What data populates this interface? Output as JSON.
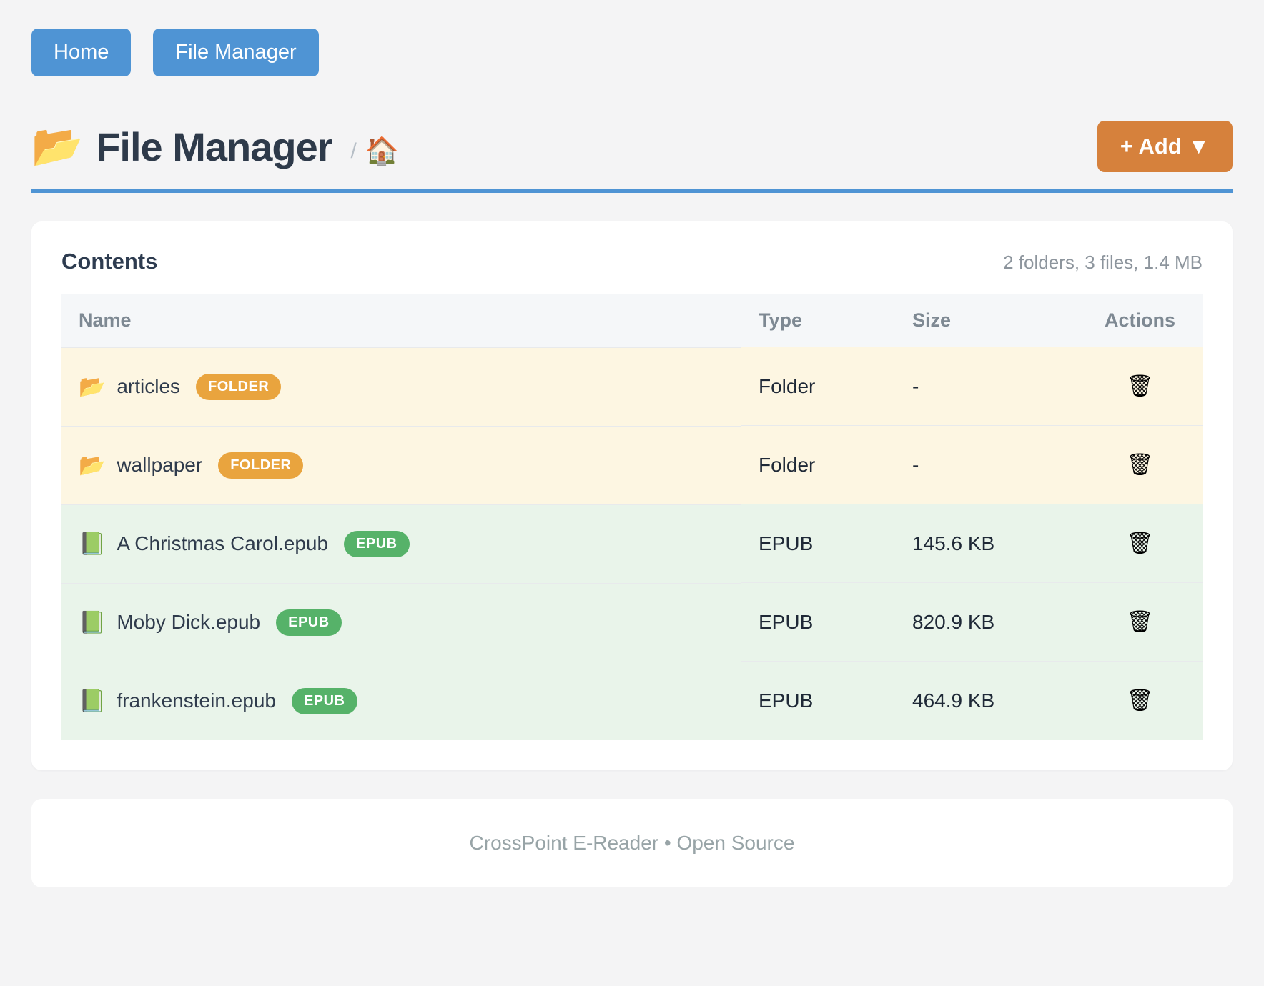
{
  "nav": {
    "items": [
      {
        "label": "Home"
      },
      {
        "label": "File Manager"
      }
    ]
  },
  "header": {
    "icon": "📂",
    "title": "File Manager",
    "breadcrumb_separator": "/",
    "breadcrumb_home_icon": "🏠",
    "add_button_label": "+ Add ▼"
  },
  "contents": {
    "title": "Contents",
    "summary": "2 folders, 3 files, 1.4 MB",
    "columns": [
      "Name",
      "Type",
      "Size",
      "Actions"
    ],
    "rows": [
      {
        "icon": "📂",
        "name": "articles",
        "badge": "FOLDER",
        "badge_type": "folder",
        "type": "Folder",
        "size": "-",
        "action_icon": "🗑"
      },
      {
        "icon": "📂",
        "name": "wallpaper",
        "badge": "FOLDER",
        "badge_type": "folder",
        "type": "Folder",
        "size": "-",
        "action_icon": "🗑"
      },
      {
        "icon": "📗",
        "name": "A Christmas Carol.epub",
        "badge": "EPUB",
        "badge_type": "epub",
        "type": "EPUB",
        "size": "145.6 KB",
        "action_icon": "🗑"
      },
      {
        "icon": "📗",
        "name": "Moby Dick.epub",
        "badge": "EPUB",
        "badge_type": "epub",
        "type": "EPUB",
        "size": "820.9 KB",
        "action_icon": "🗑"
      },
      {
        "icon": "📗",
        "name": "frankenstein.epub",
        "badge": "EPUB",
        "badge_type": "epub",
        "type": "EPUB",
        "size": "464.9 KB",
        "action_icon": "🗑"
      }
    ]
  },
  "footer": {
    "text": "CrossPoint E-Reader • Open Source"
  },
  "colors": {
    "primary_blue": "#4f94d4",
    "accent_orange": "#d6813c",
    "badge_folder": "#e9a43e",
    "badge_epub": "#56b269",
    "row_folder_bg": "#fdf6e2",
    "row_epub_bg": "#e9f4ea"
  }
}
